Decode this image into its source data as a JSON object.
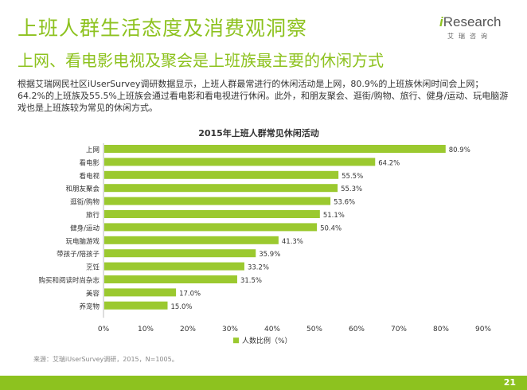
{
  "header": {
    "title": "上班人群生活态度及消费观洞察",
    "subtitle": "上网、看电影电视及聚会是上班族最主要的休闲方式"
  },
  "logo": {
    "text_i": "i",
    "text_rest": "Research",
    "cn": "艾瑞咨询"
  },
  "description": "根据艾瑞网民社区iUserSurvey调研数据显示，上班人群最常进行的休闲活动是上网，80.9%的上班族休闲时间会上网；64.2%的上班族及55.5%上班族会通过看电影和看电视进行休闲。此外，和朋友聚会、逛街/购物、旅行、健身/运动、玩电脑游戏也是上班族较为常见的休闲方式。",
  "source": "来源：艾瑞iUserSurvey调研，2015，N=1005。",
  "page_number": "21",
  "colors": {
    "accent": "#8dc21f",
    "bar": "#9bc92f"
  },
  "chart_data": {
    "type": "bar",
    "orientation": "horizontal",
    "title": "2015年上班人群常见休闲活动",
    "categories": [
      "上网",
      "看电影",
      "看电视",
      "和朋友聚会",
      "逛街/购物",
      "旅行",
      "健身/运动",
      "玩电脑游戏",
      "带孩子/陪孩子",
      "烹饪",
      "购买和阅读时尚杂志",
      "美容",
      "养宠物"
    ],
    "values": [
      80.9,
      64.2,
      55.5,
      55.3,
      53.6,
      51.1,
      50.4,
      41.3,
      35.9,
      33.2,
      31.5,
      17.0,
      15.0
    ],
    "value_labels": [
      "80.9%",
      "64.2%",
      "55.5%",
      "55.3%",
      "53.6%",
      "51.1%",
      "50.4%",
      "41.3%",
      "35.9%",
      "33.2%",
      "31.5%",
      "17.0%",
      "15.0%"
    ],
    "xlim": [
      0,
      90
    ],
    "xticks": [
      "0%",
      "10%",
      "20%",
      "30%",
      "40%",
      "50%",
      "60%",
      "70%",
      "80%",
      "90%"
    ],
    "legend": {
      "label": "人数比例（%）",
      "position": "bottom"
    },
    "grid": false
  }
}
